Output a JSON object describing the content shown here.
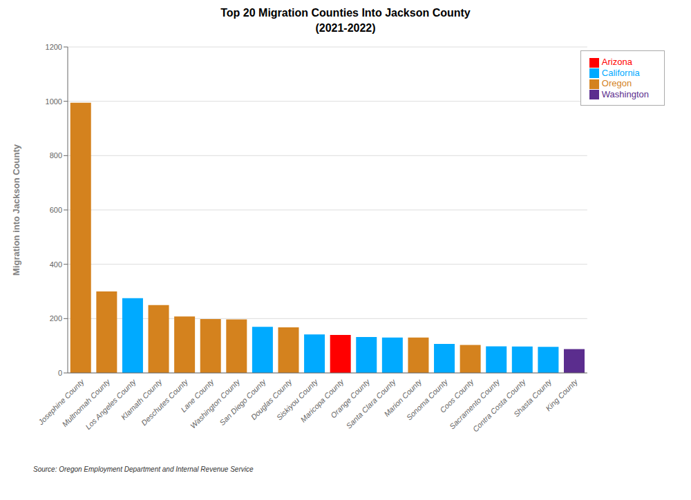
{
  "chart_data": {
    "type": "bar",
    "title": "Top 20 Migration Counties Into Jackson County\n(2021-2022)",
    "ylabel": "Migration into Jackson County",
    "annotations": [
      "Source: Oregon Employment Department and Internal Revenue Service"
    ],
    "categories": [
      "Josephine County",
      "Multnomah County",
      "Los Angeles County",
      "Klamath County",
      "Deschutes County",
      "Lane County",
      "Washington County",
      "San Diego County",
      "Douglas County",
      "Siskiyou County",
      "Maricopa County",
      "Orange County",
      "Santa Clara County",
      "Marion County",
      "Sonoma County",
      "Coos County",
      "Sacramento County",
      "Contra Costa County",
      "Shasta County",
      "King County"
    ],
    "series": [
      {
        "name": "Oregon",
        "color": "#d4821e",
        "values": [
          995,
          300,
          null,
          250,
          208,
          198,
          197,
          null,
          168,
          null,
          null,
          null,
          null,
          130,
          null,
          103,
          null,
          null,
          null,
          null
        ]
      },
      {
        "name": "California",
        "color": "#00aaff",
        "values": [
          null,
          null,
          275,
          null,
          null,
          null,
          null,
          170,
          null,
          142,
          null,
          132,
          130,
          null,
          107,
          null,
          98,
          97,
          96,
          null
        ]
      },
      {
        "name": "Arizona",
        "color": "#ff0000",
        "values": [
          null,
          null,
          null,
          null,
          null,
          null,
          null,
          null,
          null,
          null,
          140,
          null,
          null,
          null,
          null,
          null,
          null,
          null,
          null,
          null
        ]
      },
      {
        "name": "Washington",
        "color": "#5b2d8e",
        "values": [
          null,
          null,
          null,
          null,
          null,
          null,
          null,
          null,
          null,
          null,
          null,
          null,
          null,
          null,
          null,
          null,
          null,
          null,
          null,
          88
        ]
      }
    ],
    "stacked": true,
    "ylim": [
      0,
      1200
    ],
    "yticks": [
      0,
      200,
      400,
      600,
      800,
      1000,
      1200
    ],
    "grid": true,
    "legend": "upper right"
  }
}
